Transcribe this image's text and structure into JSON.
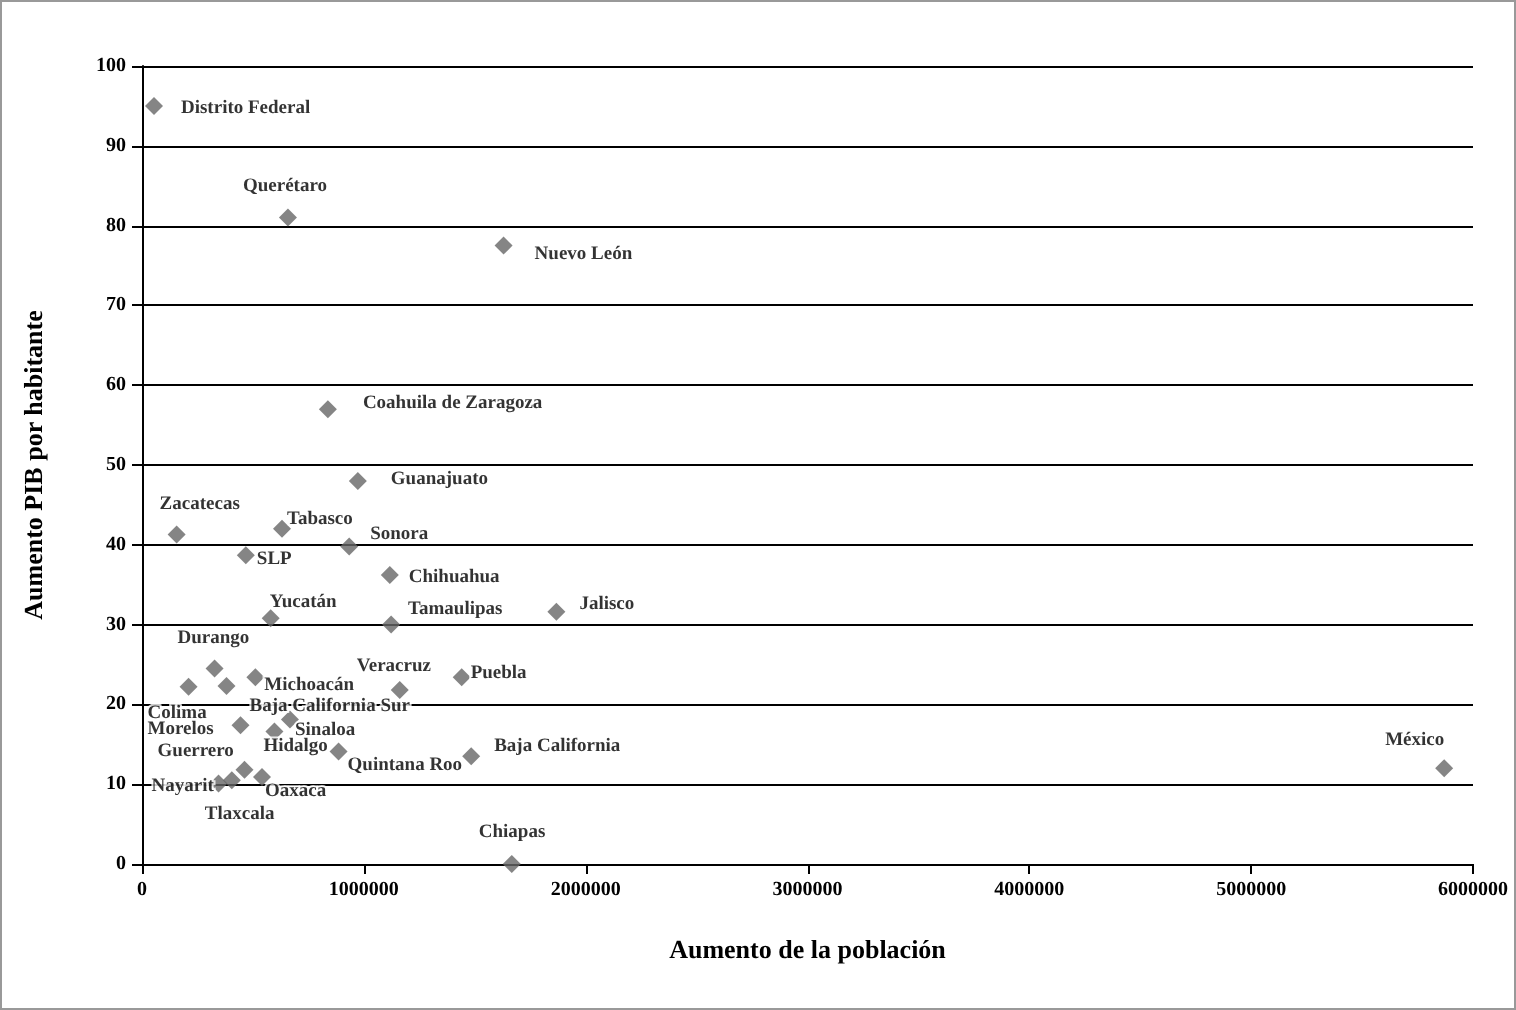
{
  "chart_data": {
    "type": "scatter",
    "xlabel": "Aumento de la población",
    "ylabel": "Aumento PIB por habitante",
    "x": [
      54000,
      658000,
      1630000,
      838000,
      973000,
      156000,
      631000,
      468000,
      934000,
      1117000,
      580000,
      1123000,
      1868000,
      5870000,
      210000,
      327000,
      381000,
      511000,
      444000,
      597000,
      667000,
      886000,
      1484000,
      1162000,
      1441000,
      345000,
      405000,
      462000,
      541000,
      1667000
    ],
    "values": [
      95,
      81,
      77.5,
      57,
      48,
      41.3,
      42,
      38.7,
      39.8,
      36.2,
      30.8,
      30,
      31.6,
      12,
      22.2,
      24.5,
      22.3,
      23.4,
      17.4,
      16.6,
      18.1,
      14.1,
      13.5,
      21.8,
      23.4,
      10.1,
      10.5,
      11.8,
      10.9,
      0
    ],
    "color": "#666666",
    "marker": "diamond",
    "annotations": [
      {
        "text": "Distrito Federal",
        "x": 54000,
        "y": 95
      },
      {
        "text": "Querétaro",
        "x": 658000,
        "y": 81
      },
      {
        "text": "Nuevo León",
        "x": 1630000,
        "y": 77.5
      },
      {
        "text": "Coahuila de Zaragoza",
        "x": 838000,
        "y": 57
      },
      {
        "text": "Guanajuato",
        "x": 973000,
        "y": 48
      },
      {
        "text": "Zacatecas",
        "x": 156000,
        "y": 41.3
      },
      {
        "text": "Tabasco",
        "x": 631000,
        "y": 42
      },
      {
        "text": "SLP",
        "x": 468000,
        "y": 38.7
      },
      {
        "text": "Sonora",
        "x": 934000,
        "y": 39.8
      },
      {
        "text": "Chihuahua",
        "x": 1117000,
        "y": 36.2
      },
      {
        "text": "Yucatán",
        "x": 580000,
        "y": 30.8
      },
      {
        "text": "Tamaulipas",
        "x": 1123000,
        "y": 30
      },
      {
        "text": "Jalisco",
        "x": 1868000,
        "y": 31.6
      },
      {
        "text": "México",
        "x": 5870000,
        "y": 12
      },
      {
        "text": "Colima",
        "x": 210000,
        "y": 22.2
      },
      {
        "text": "Durango",
        "x": 327000,
        "y": 24.5
      },
      {
        "text": "Baja California Sur",
        "x": 381000,
        "y": 22.3
      },
      {
        "text": "Michoacán",
        "x": 511000,
        "y": 23.4
      },
      {
        "text": "Morelos",
        "x": 444000,
        "y": 17.4
      },
      {
        "text": "Hidalgo",
        "x": 597000,
        "y": 16.6
      },
      {
        "text": "Sinaloa",
        "x": 667000,
        "y": 18.1
      },
      {
        "text": "Quintana Roo",
        "x": 886000,
        "y": 14.1
      },
      {
        "text": "Baja California",
        "x": 1484000,
        "y": 13.5
      },
      {
        "text": "Veracruz",
        "x": 1162000,
        "y": 21.8
      },
      {
        "text": "Puebla",
        "x": 1441000,
        "y": 23.4
      },
      {
        "text": "Guerrero",
        "x": 345000,
        "y": 10.1
      },
      {
        "text": "Tlaxcala",
        "x": 405000,
        "y": 10.5
      },
      {
        "text": "Nayarit",
        "x": 462000,
        "y": 11.8
      },
      {
        "text": "Oaxaca",
        "x": 541000,
        "y": 10.9
      },
      {
        "text": "Chiapas",
        "x": 1667000,
        "y": 0
      }
    ],
    "xlim": [
      0,
      6000000
    ],
    "xticks": [
      0,
      1000000,
      2000000,
      3000000,
      4000000,
      5000000,
      6000000
    ],
    "ylim": [
      0,
      100
    ],
    "yticks": [
      0,
      10,
      20,
      30,
      40,
      50,
      60,
      70,
      80,
      90,
      100
    ],
    "grid": "y"
  }
}
